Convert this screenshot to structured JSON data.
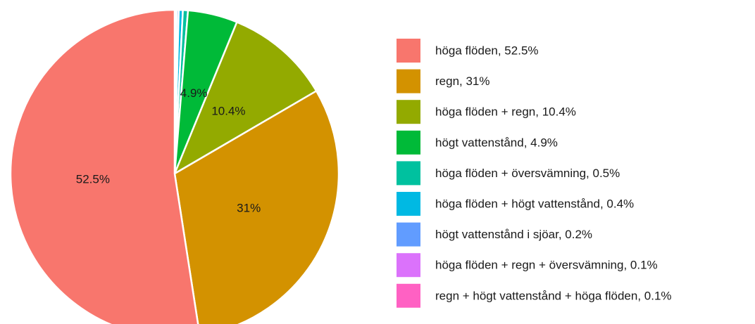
{
  "chart_data": {
    "type": "pie",
    "categories": [
      "höga flöden, 52.5%",
      "regn, 31%",
      "höga flöden + regn, 10.4%",
      "högt vattenstånd, 4.9%",
      "höga flöden + översvämning, 0.5%",
      "höga flöden + högt vattenstånd, 0.4%",
      "högt vattenstånd i sjöar, 0.2%",
      "höga flöden + regn + översvämning, 0.1%",
      "regn + högt vattenstånd + höga flöden, 0.1%"
    ],
    "values": [
      52.5,
      31,
      10.4,
      4.9,
      0.5,
      0.4,
      0.2,
      0.1,
      0.1
    ],
    "value_labels": [
      "52.5%",
      "31%",
      "10.4%",
      "4.9%",
      null,
      null,
      null,
      null,
      null
    ],
    "colors": [
      "#F8766D",
      "#D39200",
      "#93AA00",
      "#00BA38",
      "#00C19F",
      "#00B9E3",
      "#619CFF",
      "#DB72FB",
      "#FF61C3"
    ],
    "legend": "right"
  }
}
